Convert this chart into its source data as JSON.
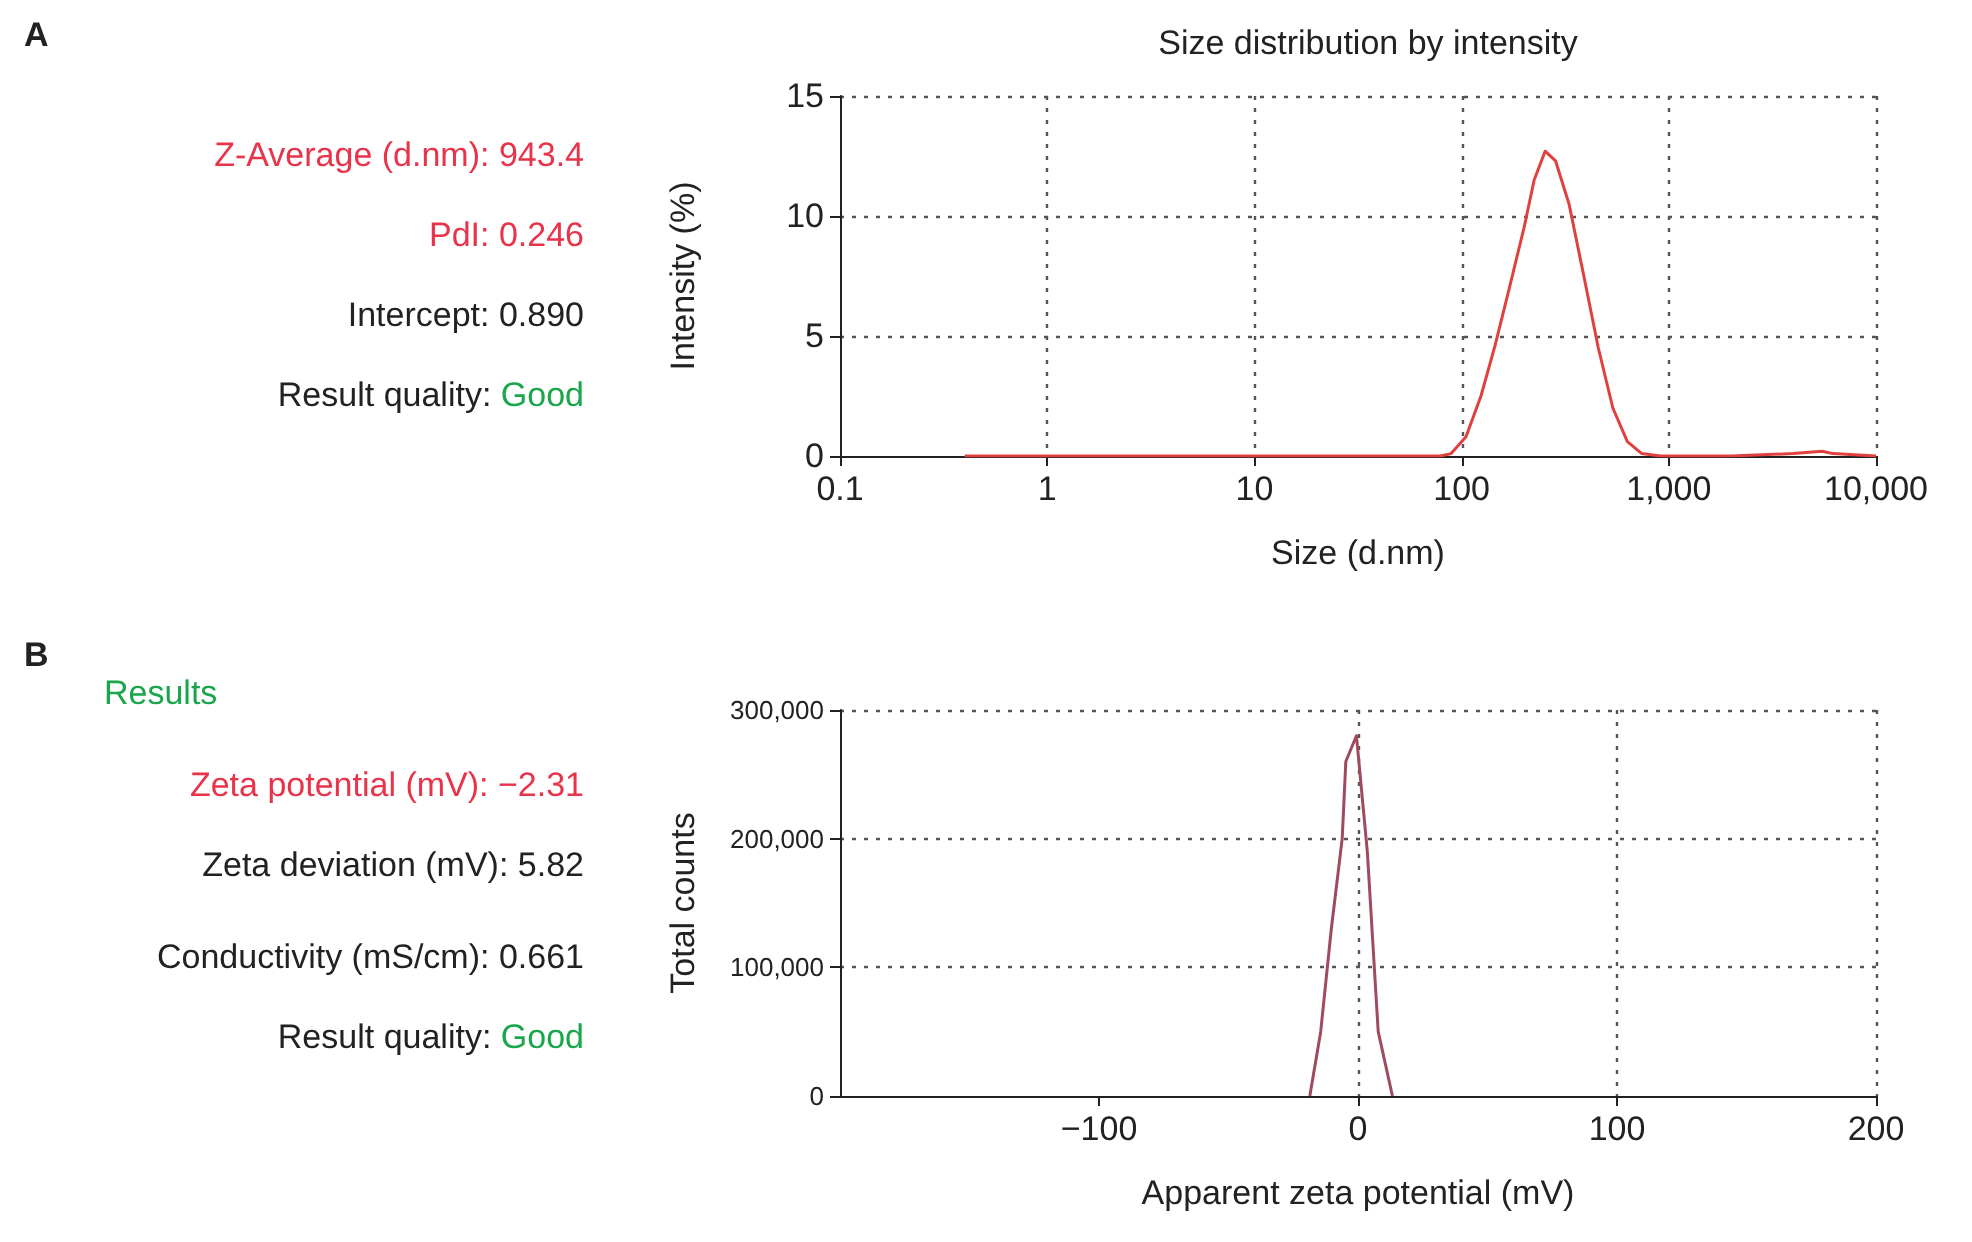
{
  "chart_data": [
    {
      "type": "other",
      "title": "A",
      "annotations": [
        "Z-Average (d.nm): 943.4",
        "PdI: 0.246",
        "Intercept: 0.890",
        "Result quality: Good"
      ]
    },
    {
      "type": "line",
      "title": "Size distribution by intensity",
      "xlabel": "Size (d.nm)",
      "ylabel": "Intensity (%)",
      "log": "x",
      "grid": true,
      "x": [
        0.4,
        1,
        10,
        79,
        89,
        105,
        124,
        145,
        170,
        200,
        224,
        253,
        284,
        330,
        389,
        457,
        537,
        631,
        741,
        912,
        2000,
        3980,
        5500,
        6200,
        10000
      ],
      "series": [
        {
          "color": "#e0413f",
          "values": [
            0,
            0,
            0,
            0,
            0.1,
            0.8,
            2.5,
            4.6,
            7.0,
            9.5,
            11.5,
            12.7,
            12.3,
            10.5,
            7.5,
            4.5,
            2.0,
            0.6,
            0.1,
            0,
            0,
            0.1,
            0.2,
            0.1,
            0
          ]
        }
      ],
      "xlim": [
        0.1,
        10000
      ],
      "xticks": [
        0.1,
        1,
        10,
        100,
        {
          "value": 1000,
          "label": "1,000"
        },
        {
          "value": 10000,
          "label": "10,000"
        }
      ],
      "ylim": [
        0,
        15
      ],
      "yticks": [
        0,
        5,
        10,
        15
      ]
    },
    {
      "type": "other",
      "title": "B",
      "annotations": [
        "Results",
        "Zeta potential (mV): −2.31",
        "Zeta deviation (mV): 5.82",
        "Conductivity (mS/cm): 0.661",
        "Result quality: Good"
      ]
    },
    {
      "type": "line",
      "xlabel": "Apparent zeta potential (mV)",
      "ylabel": "Total counts",
      "grid": true,
      "x": [
        -18.6,
        -14.4,
        -10.3,
        -6.1,
        -4.7,
        -0.6,
        3.6,
        7.8,
        13.3
      ],
      "series": [
        {
          "color": "#a04a5e",
          "values": [
            0,
            50000,
            130000,
            200000,
            260000,
            280000,
            190000,
            50000,
            0
          ]
        }
      ],
      "xlim": [
        -200,
        200
      ],
      "xticks": [
        {
          "value": -100,
          "label": "−100"
        },
        0,
        100,
        200
      ],
      "ylim": [
        0,
        300000
      ],
      "yticks": [
        0,
        {
          "value": 100000,
          "label": "100,000"
        },
        {
          "value": 200000,
          "label": "200,000"
        },
        {
          "value": 300000,
          "label": "300,000"
        }
      ]
    }
  ]
}
